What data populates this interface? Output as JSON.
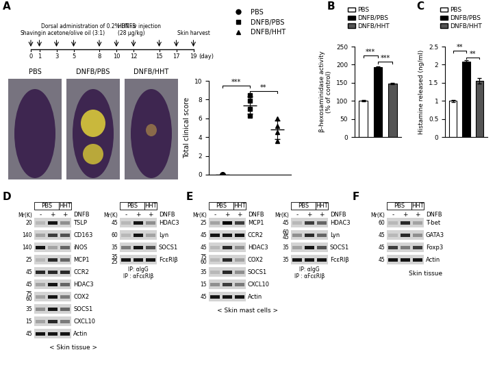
{
  "panel_labels": [
    "A",
    "B",
    "C",
    "D",
    "E",
    "F"
  ],
  "timeline": {
    "days": [
      0,
      1,
      3,
      5,
      8,
      10,
      12,
      15,
      17,
      19
    ],
    "unit": "(day)",
    "events": [
      {
        "label": "Shaving",
        "days": [
          0
        ]
      },
      {
        "label": "Dorsal administration of 0.2% DNFB\nin acetone/olive oil (3:1)",
        "days": [
          1,
          3,
          5,
          8
        ]
      },
      {
        "label": "HHT i.v injection\n(28 μg/kg)",
        "days": [
          10,
          12,
          15,
          17
        ]
      },
      {
        "label": "Skin harvest",
        "days": [
          19
        ]
      }
    ]
  },
  "photos": {
    "labels": [
      "PBS",
      "DNFB/PBS",
      "DNFB/HHT"
    ]
  },
  "chart_data": [
    {
      "type": "scatter",
      "ylabel": "Total clinical score",
      "ylim": [
        0,
        10
      ],
      "yticks": [
        0,
        2,
        4,
        6,
        8,
        10
      ],
      "tick_labels": "y",
      "legend": "upper left",
      "series": [
        {
          "name": "PBS",
          "marker": "circle",
          "color": "#000000",
          "values": [
            0,
            0,
            0,
            0
          ],
          "mean": 0,
          "sd": 0
        },
        {
          "name": "DNFB/PBS",
          "marker": "square",
          "color": "#000000",
          "values": [
            8.5,
            7.9,
            7.0,
            6.3
          ],
          "mean": 7.4,
          "sd": 0.9
        },
        {
          "name": "DNFB/HHT",
          "marker": "triangle",
          "color": "#000000",
          "values": [
            6.0,
            5.2,
            4.5,
            3.6
          ],
          "mean": 4.8,
          "sd": 1.0
        }
      ],
      "significance": [
        {
          "text": "***",
          "between": [
            0,
            1
          ],
          "y": 9.5
        },
        {
          "text": "**",
          "between": [
            1,
            2
          ],
          "y": 8.9
        }
      ]
    },
    {
      "type": "bar",
      "ylabel": "β-hexosaminidase activity\n(% of control)",
      "categories": [
        "PBS",
        "DNFB/PBS",
        "DNFB/HHT"
      ],
      "values": [
        100,
        193,
        148
      ],
      "errors": [
        1.5,
        1.5,
        1.5
      ],
      "colors": [
        "#ffffff",
        "#000000",
        "#555555"
      ],
      "ylim": [
        0,
        250
      ],
      "yticks": [
        0,
        50,
        100,
        150,
        200,
        250
      ],
      "tick_labels": "y",
      "legend": "upper left",
      "significance": [
        {
          "text": "***",
          "between": [
            0,
            1
          ],
          "y": 225
        },
        {
          "text": "***",
          "between": [
            1,
            2
          ],
          "y": 208
        }
      ]
    },
    {
      "type": "bar",
      "ylabel": "Histamine released (ng/ml)",
      "categories": [
        "PBS",
        "DNFB/PBS",
        "DNFB/HHT"
      ],
      "values": [
        1.0,
        2.08,
        1.55
      ],
      "errors": [
        0.03,
        0.05,
        0.08
      ],
      "colors": [
        "#ffffff",
        "#000000",
        "#555555"
      ],
      "ylim": [
        0,
        2.5
      ],
      "yticks": [
        0,
        0.5,
        1,
        1.5,
        2,
        2.5
      ],
      "tick_labels": "y",
      "legend": "upper left",
      "significance": [
        {
          "text": "**",
          "between": [
            0,
            1
          ],
          "y": 2.38
        },
        {
          "text": "**",
          "between": [
            1,
            2
          ],
          "y": 2.2
        }
      ]
    }
  ],
  "blots": [
    {
      "groups": [
        {
          "label": "PBS",
          "lanes": [
            0,
            1
          ]
        },
        {
          "label": "HHT",
          "lanes": [
            2,
            2
          ]
        }
      ],
      "signs": [
        "-",
        "+",
        "+"
      ],
      "sign_label": "DNFB",
      "mw_label": "Mr(K)",
      "rows": [
        {
          "name": "TSLP",
          "mw": [
            20
          ],
          "bands": [
            0.1,
            0.9,
            0.3
          ]
        },
        {
          "name": "CD163",
          "mw": [
            140
          ],
          "bands": [
            0.2,
            0.7,
            0.6
          ]
        },
        {
          "name": "iNOS",
          "mw": [
            140
          ],
          "bands": [
            0.9,
            0.2,
            0.5
          ]
        },
        {
          "name": "MCP1",
          "mw": [
            25
          ],
          "bands": [
            0.1,
            0.8,
            0.5
          ]
        },
        {
          "name": "CCR2",
          "mw": [
            45
          ],
          "bands": [
            0.8,
            0.8,
            0.8
          ]
        },
        {
          "name": "HDAC3",
          "mw": [
            45
          ],
          "bands": [
            0.2,
            0.9,
            0.5
          ]
        },
        {
          "name": "COX2",
          "mw": [
            75,
            60
          ],
          "bands": [
            0.2,
            0.9,
            0.4
          ]
        },
        {
          "name": "SOCS1",
          "mw": [
            35
          ],
          "bands": [
            0.3,
            0.9,
            0.5
          ]
        },
        {
          "name": "CXCL10",
          "mw": [
            15
          ],
          "bands": [
            0.2,
            0.8,
            0.4
          ]
        },
        {
          "name": "Actin",
          "mw": [
            45
          ],
          "bands": [
            0.9,
            0.9,
            0.9
          ]
        }
      ],
      "footnotes": [],
      "caption": "< Skin tissue >"
    },
    {
      "groups": [
        {
          "label": "PBS",
          "lanes": [
            0,
            1
          ]
        },
        {
          "label": "HHT",
          "lanes": [
            2,
            2
          ]
        }
      ],
      "signs": [
        "-",
        "+",
        "+"
      ],
      "sign_label": "DNFB",
      "mw_label": "Mr(K)",
      "rows": [
        {
          "name": "HDAC3",
          "mw": [
            45
          ],
          "bands": [
            0.1,
            0.9,
            0.3
          ]
        },
        {
          "name": "Lyn",
          "mw": [
            60
          ],
          "bands": [
            0.1,
            0.9,
            0.2
          ]
        },
        {
          "name": "SOCS1",
          "mw": [
            35
          ],
          "bands": [
            0.4,
            0.9,
            0.6
          ]
        },
        {
          "name": "FcεRIβ",
          "mw": [
            35,
            25
          ],
          "bands": [
            0.9,
            0.9,
            0.9
          ]
        }
      ],
      "footnotes": [
        "IP: αIgG",
        "IP : αFcεRIβ"
      ],
      "caption": null
    },
    {
      "groups": [
        {
          "label": "PBS",
          "lanes": [
            0,
            1
          ]
        },
        {
          "label": "HHT",
          "lanes": [
            2,
            2
          ]
        }
      ],
      "signs": [
        "-",
        "+",
        "+"
      ],
      "sign_label": "DNFB",
      "mw_label": "Mr(K)",
      "rows": [
        {
          "name": "MCP1",
          "mw": [
            25
          ],
          "bands": [
            0.2,
            1.0,
            0.7
          ]
        },
        {
          "name": "CCR2",
          "mw": [
            45
          ],
          "bands": [
            0.9,
            0.9,
            0.9
          ]
        },
        {
          "name": "HDAC3",
          "mw": [
            45
          ],
          "bands": [
            0.1,
            0.8,
            0.3
          ]
        },
        {
          "name": "COX2",
          "mw": [
            75,
            60
          ],
          "bands": [
            0.1,
            0.8,
            0.2
          ]
        },
        {
          "name": "SOCS1",
          "mw": [
            35
          ],
          "bands": [
            0.1,
            0.8,
            0.3
          ]
        },
        {
          "name": "CXCL10",
          "mw": [
            15
          ],
          "bands": [
            0.3,
            0.7,
            0.4
          ]
        },
        {
          "name": "Actin",
          "mw": [
            45
          ],
          "bands": [
            0.9,
            0.9,
            0.9
          ]
        }
      ],
      "footnotes": [],
      "caption": "< Skin mast cells >"
    },
    {
      "groups": [
        {
          "label": "PBS",
          "lanes": [
            0,
            1
          ]
        },
        {
          "label": "HHT",
          "lanes": [
            2,
            2
          ]
        }
      ],
      "signs": [
        "-",
        "+",
        "+"
      ],
      "sign_label": "DNFB",
      "mw_label": "Mr(K)",
      "rows": [
        {
          "name": "HDAC3",
          "mw": [
            45
          ],
          "bands": [
            0.1,
            0.7,
            0.5
          ]
        },
        {
          "name": "Lyn",
          "mw": [
            60,
            45
          ],
          "bands": [
            0.3,
            0.8,
            0.5
          ]
        },
        {
          "name": "SOCS1",
          "mw": [
            35
          ],
          "bands": [
            0.2,
            0.9,
            0.6
          ]
        },
        {
          "name": "FcεRIβ",
          "mw": [
            35
          ],
          "bands": [
            0.9,
            0.9,
            0.9
          ]
        }
      ],
      "footnotes": [
        "IP: αIgG",
        "IP : αFcεRIβ"
      ],
      "caption": null
    },
    {
      "groups": [
        {
          "label": "PBS",
          "lanes": [
            0,
            1
          ]
        },
        {
          "label": "HHT",
          "lanes": [
            2,
            2
          ]
        }
      ],
      "signs": [
        "-",
        "+",
        "+"
      ],
      "sign_label": "DNFB",
      "mw_label": "Mr(K)",
      "rows": [
        {
          "name": "T-bet",
          "mw": [
            60
          ],
          "bands": [
            0.1,
            0.8,
            0.2
          ]
        },
        {
          "name": "GATA3",
          "mw": [
            45
          ],
          "bands": [
            0.1,
            0.8,
            0.3
          ]
        },
        {
          "name": "Foxp3",
          "mw": [
            45
          ],
          "bands": [
            0.7,
            0.4,
            0.7
          ]
        },
        {
          "name": "Actin",
          "mw": [
            45
          ],
          "bands": [
            0.9,
            0.9,
            0.9
          ]
        }
      ],
      "footnotes": [],
      "caption": "Skin tissue"
    }
  ]
}
